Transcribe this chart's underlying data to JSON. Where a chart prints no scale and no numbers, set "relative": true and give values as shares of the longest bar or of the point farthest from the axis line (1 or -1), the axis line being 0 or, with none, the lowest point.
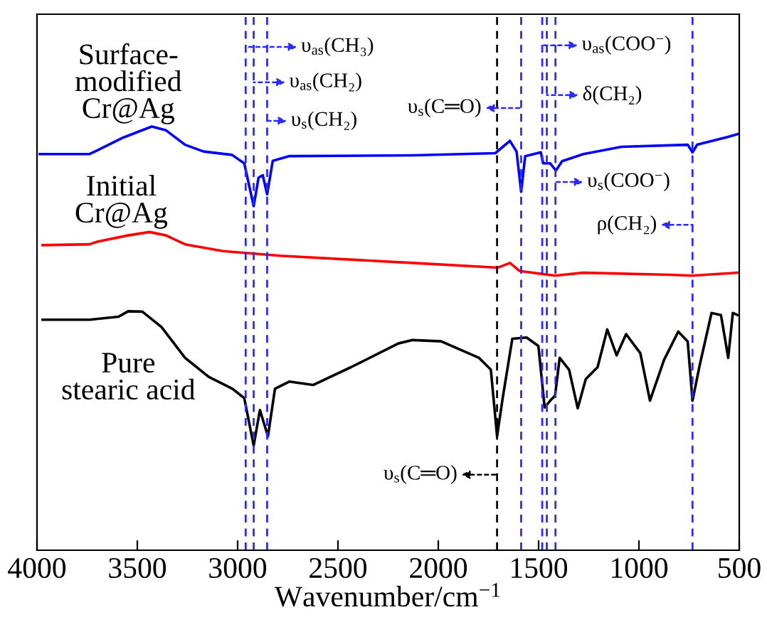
{
  "chart_data": {
    "type": "line",
    "xlabel": "Wavenumber/cm$^{−1}$",
    "relative": true,
    "xlim": [
      4000,
      500
    ],
    "xticks": [
      4000,
      3500,
      3000,
      2500,
      2000,
      1500,
      1000,
      500
    ],
    "grid": false,
    "legend": false,
    "line_style": "solid",
    "marker": "none",
    "series": [
      {
        "name": "Surface-\nmodified\nCr@Ag",
        "color": "#0000ff",
        "x": [
          3986,
          3738,
          3702,
          3570,
          3428,
          3357,
          3262,
          3170,
          3028,
          2967,
          2920,
          2896,
          2875,
          2853,
          2825,
          2745,
          2128,
          1716,
          1643,
          1610,
          1587,
          1567,
          1489,
          1477,
          1442,
          1414,
          1383,
          1277,
          1087,
          757,
          733,
          710,
          568,
          509
        ],
        "values": [
          0.935,
          0.935,
          0.943,
          0.974,
          1,
          0.991,
          0.957,
          0.941,
          0.933,
          0.913,
          0.812,
          0.879,
          0.885,
          0.84,
          0.919,
          0.93,
          0.932,
          0.937,
          0.966,
          0.941,
          0.846,
          0.93,
          0.939,
          0.913,
          0.913,
          0.896,
          0.918,
          0.935,
          0.952,
          0.957,
          0.939,
          0.957,
          0.974,
          0.982
        ]
      },
      {
        "name": "Initial\nCr@Ag",
        "color": "#ff0000",
        "x": [
          3972,
          3738,
          3700,
          3546,
          3440,
          3357,
          3262,
          3073,
          2789,
          2128,
          1702,
          1643,
          1595,
          1418,
          1277,
          851,
          733,
          509
        ],
        "values": [
          0.72,
          0.722,
          0.728,
          0.743,
          0.751,
          0.743,
          0.722,
          0.706,
          0.695,
          0.678,
          0.667,
          0.678,
          0.659,
          0.648,
          0.655,
          0.65,
          0.648,
          0.655
        ]
      },
      {
        "name": "Pure\nstearic acid",
        "color": "#000000",
        "x": [
          3972,
          3738,
          3594,
          3546,
          3475,
          3380,
          3262,
          3144,
          3026,
          2967,
          2920,
          2889,
          2849,
          2814,
          2743,
          2624,
          2435,
          2199,
          2128,
          1986,
          1797,
          1738,
          1707,
          1679,
          1631,
          1560,
          1501,
          1470,
          1442,
          1418,
          1395,
          1348,
          1305,
          1265,
          1206,
          1158,
          1111,
          1064,
          993,
          945,
          875,
          804,
          757,
          733,
          697,
          638,
          591,
          555,
          532,
          509
        ],
        "values": [
          0.544,
          0.544,
          0.551,
          0.564,
          0.563,
          0.527,
          0.454,
          0.409,
          0.381,
          0.359,
          0.247,
          0.331,
          0.269,
          0.381,
          0.398,
          0.39,
          0.432,
          0.488,
          0.496,
          0.493,
          0.454,
          0.426,
          0.269,
          0.359,
          0.499,
          0.502,
          0.482,
          0.337,
          0.353,
          0.365,
          0.454,
          0.426,
          0.335,
          0.404,
          0.432,
          0.521,
          0.46,
          0.51,
          0.465,
          0.353,
          0.449,
          0.516,
          0.493,
          0.353,
          0.437,
          0.56,
          0.555,
          0.454,
          0.56,
          0.555
        ]
      }
    ],
    "ref_lines": [
      {
        "axis": "x",
        "value": 2960,
        "label": "υ$_{as}$(CH₃)",
        "color": "#2b2bff",
        "line_style": "dashed"
      },
      {
        "axis": "x",
        "value": 2920,
        "label": "υ$_{as}$(CH₂)",
        "color": "#2b2bff",
        "line_style": "dashed"
      },
      {
        "axis": "x",
        "value": 2853,
        "label": "υ$_{s}$(CH₂)",
        "color": "#2b2bff",
        "line_style": "dashed"
      },
      {
        "axis": "x",
        "value": 1707,
        "label": "υ$_{s}$(C═O)",
        "color": "#000000",
        "line_style": "dashed"
      },
      {
        "axis": "x",
        "value": 1587,
        "label": "υ$_{s}$(C═O)",
        "color": "#2b2bff",
        "line_style": "dashed"
      },
      {
        "axis": "x",
        "value": 1482,
        "label": "υ$_{as}$(COO$^{−}$)",
        "color": "#2b2bff",
        "line_style": "dashed"
      },
      {
        "axis": "x",
        "value": 1459,
        "label": "δ(CH₂)",
        "color": "#2b2bff",
        "line_style": "dashed"
      },
      {
        "axis": "x",
        "value": 1416,
        "label": "υ$_{s}$(COO$^{−}$)",
        "color": "#2b2bff",
        "line_style": "dashed"
      },
      {
        "axis": "x",
        "value": 733,
        "label": "ρ(CH₂)",
        "color": "#2b2bff",
        "line_style": "dashed"
      }
    ]
  }
}
